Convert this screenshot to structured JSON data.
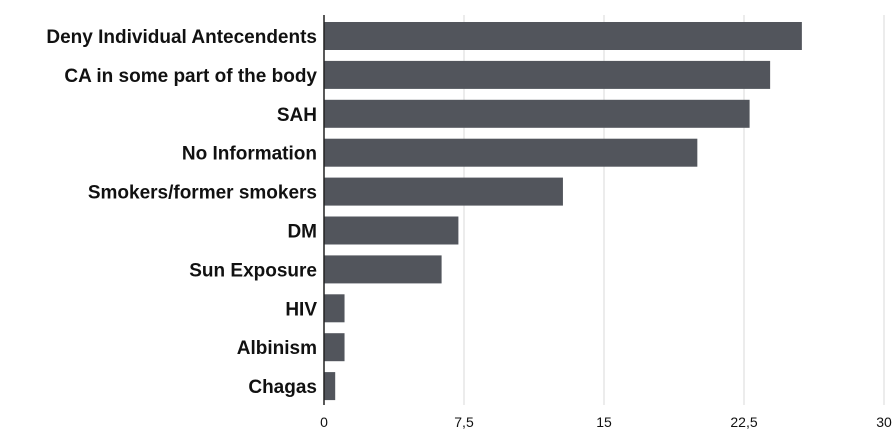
{
  "chart_data": {
    "type": "bar",
    "orientation": "horizontal",
    "title": "",
    "xlabel": "",
    "ylabel": "",
    "categories": [
      "Deny Individual Antecendents",
      "CA in some part of the body",
      "SAH ",
      "No Information",
      "Smokers/former smokers",
      "DM",
      "Sun Exposure",
      "HIV",
      "Albinism",
      "Chagas"
    ],
    "values": [
      25.6,
      23.9,
      22.8,
      20.0,
      12.8,
      7.2,
      6.3,
      1.1,
      1.1,
      0.6
    ],
    "xlim": [
      0,
      30
    ],
    "xticks": [
      "0",
      "7,5",
      "15",
      "22,5",
      "30"
    ],
    "grid": "vertical",
    "bar_color": "#52555c"
  }
}
